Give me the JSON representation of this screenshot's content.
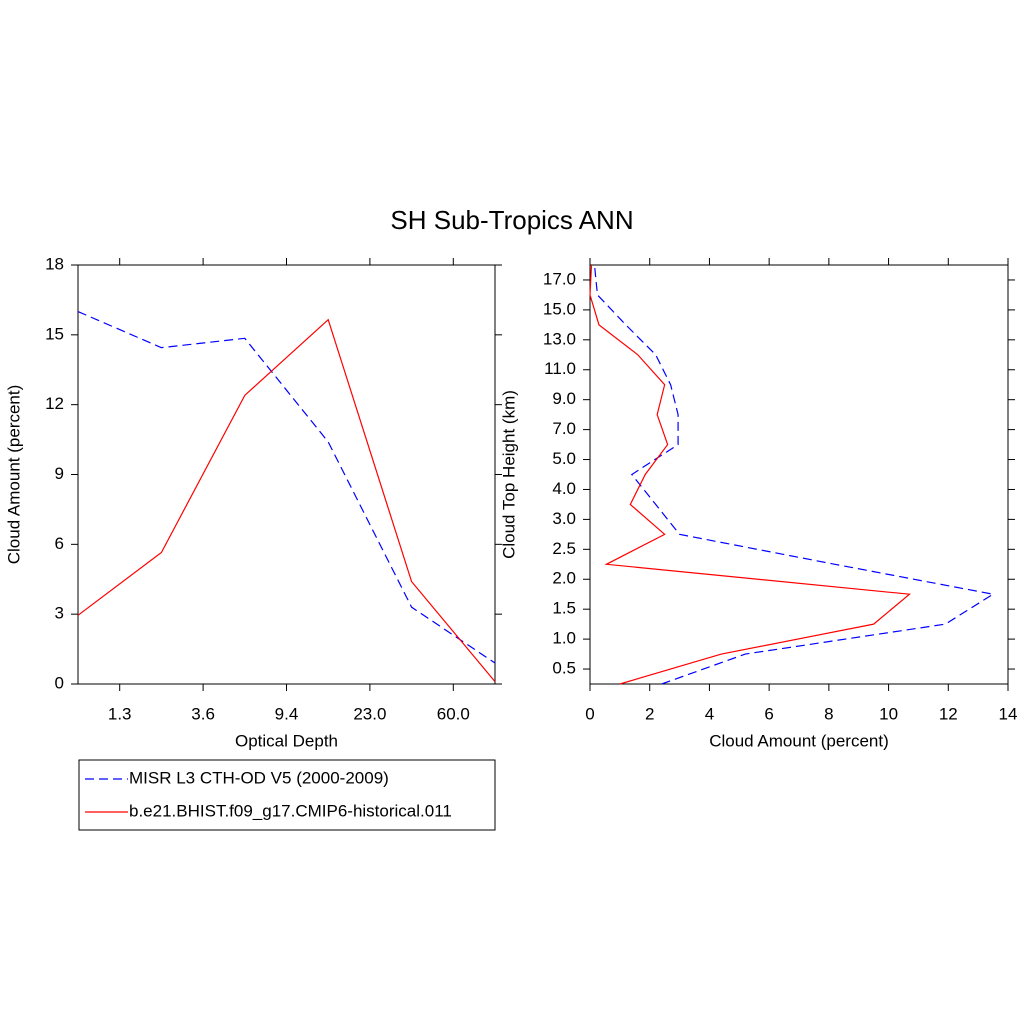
{
  "title": "SH Sub-Tropics ANN",
  "chart_data": [
    {
      "type": "line",
      "xlabel": "Optical Depth",
      "ylabel": "Cloud Amount (percent)",
      "x": [
        0,
        1,
        2,
        3,
        4,
        5
      ],
      "xlim": [
        0,
        5
      ],
      "xticks": [
        {
          "value": 0.5,
          "label": "1.3"
        },
        {
          "value": 1.5,
          "label": "3.6"
        },
        {
          "value": 2.5,
          "label": "9.4"
        },
        {
          "value": 3.5,
          "label": "23.0"
        },
        {
          "value": 4.5,
          "label": "60.0"
        }
      ],
      "ylim": [
        0,
        18
      ],
      "yticks": [
        0,
        3,
        6,
        9,
        12,
        15,
        18
      ],
      "series": [
        {
          "name": "MISR L3 CTH-OD V5 (2000-2009)",
          "color": "#0000ff",
          "dashed": true,
          "values": [
            16.0,
            14.45,
            14.85,
            10.4,
            3.3,
            0.9
          ]
        },
        {
          "name": "b.e21.BHIST.f09_g17.CMIP6-historical.011",
          "color": "#ff0000",
          "dashed": false,
          "values": [
            2.95,
            5.65,
            12.4,
            15.65,
            4.4,
            0.1
          ]
        }
      ]
    },
    {
      "type": "line",
      "orientation": "horizontal",
      "xlabel": "Cloud Amount (percent)",
      "ylabel": "Cloud Top Height (km)",
      "y": [
        0,
        1,
        2,
        3,
        4,
        5,
        6,
        7,
        8,
        9,
        10,
        11,
        12,
        13,
        14
      ],
      "xlim": [
        0,
        14
      ],
      "xticks": [
        0,
        2,
        4,
        6,
        8,
        10,
        12,
        14
      ],
      "ylim": [
        0,
        14
      ],
      "yticks": [
        0.5,
        {
          "value": 1.5,
          "label": "1.0"
        },
        {
          "value": 2.5,
          "label": "1.5"
        },
        {
          "value": 3.5,
          "label": "2.0"
        },
        {
          "value": 4.5,
          "label": "2.5"
        },
        {
          "value": 5.5,
          "label": "3.0"
        },
        {
          "value": 6.5,
          "label": "4.0"
        },
        {
          "value": 7.5,
          "label": "5.0"
        },
        {
          "value": 8.5,
          "label": "7.0"
        },
        {
          "value": 9.5,
          "label": "9.0"
        },
        {
          "value": 10.5,
          "label": "11.0"
        },
        {
          "value": 11.5,
          "label": "13.0"
        },
        {
          "value": 12.5,
          "label": "15.0"
        },
        {
          "value": 13.5,
          "label": "17.0"
        }
      ],
      "series": [
        {
          "color": "#0000ff",
          "dashed": true,
          "values": [
            2.4,
            5.2,
            11.9,
            13.5,
            8.2,
            3.0,
            2.2,
            1.4,
            2.95,
            2.95,
            2.7,
            2.2,
            1.2,
            0.25,
            0.15
          ]
        },
        {
          "color": "#ff0000",
          "dashed": false,
          "values": [
            1.0,
            4.4,
            9.5,
            10.7,
            0.55,
            2.5,
            1.35,
            1.85,
            2.6,
            2.25,
            2.5,
            1.6,
            0.3,
            0.0,
            0.05
          ]
        }
      ]
    }
  ]
}
